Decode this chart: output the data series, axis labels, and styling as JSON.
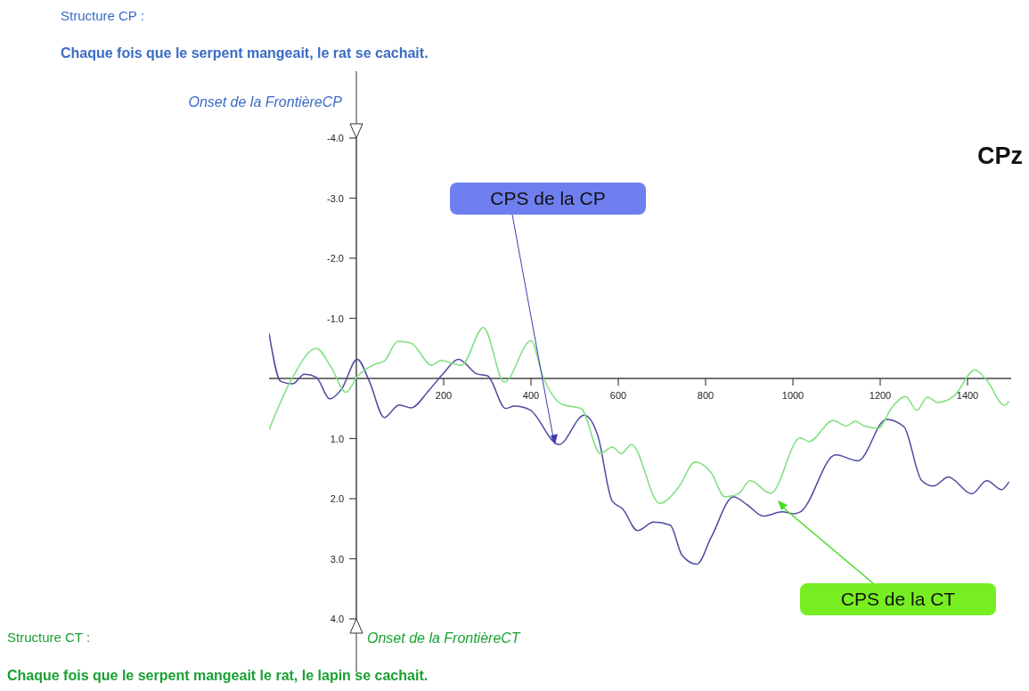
{
  "chart_data": {
    "type": "line",
    "title": "CPz",
    "xlim": [
      -200,
      1500
    ],
    "xticks": [
      200,
      400,
      600,
      800,
      1000,
      1200,
      1400
    ],
    "ylim": [
      4,
      -4
    ],
    "yticks": [
      {
        "value": -4,
        "label": "-4.0"
      },
      {
        "value": -3,
        "label": "-3.0"
      },
      {
        "value": -2,
        "label": "-2.0"
      },
      {
        "value": -1,
        "label": "-1.0"
      },
      {
        "value": 1,
        "label": "1.0"
      },
      {
        "value": 2,
        "label": "2.0"
      },
      {
        "value": 3,
        "label": "3.0"
      },
      {
        "value": 4,
        "label": "4.0"
      }
    ],
    "marker": "none",
    "series": [
      {
        "color": "#4a4aa0",
        "x": [
          -200,
          -173,
          -146,
          -119,
          -92,
          -61,
          -34,
          2,
          30,
          64,
          98,
          125,
          166,
          200,
          234,
          275,
          301,
          342,
          362,
          397,
          464,
          522,
          553,
          586,
          610,
          644,
          681,
          719,
          746,
          780,
          813,
          864,
          895,
          932,
          976,
          1003,
          1017,
          1098,
          1149,
          1214,
          1254,
          1295,
          1322,
          1356,
          1410,
          1444,
          1478,
          1495
        ],
        "values": [
          -0.75,
          0.05,
          0.09,
          -0.07,
          -0.02,
          0.34,
          0.18,
          -0.32,
          0.05,
          0.65,
          0.44,
          0.49,
          0.2,
          -0.09,
          -0.32,
          -0.08,
          -0.04,
          0.5,
          0.46,
          0.52,
          1.1,
          0.61,
          0.95,
          2.04,
          2.17,
          2.53,
          2.39,
          2.44,
          2.94,
          3.09,
          2.64,
          1.97,
          2.1,
          2.29,
          2.22,
          2.25,
          2.22,
          1.27,
          1.37,
          0.68,
          0.8,
          1.7,
          1.79,
          1.64,
          1.92,
          1.7,
          1.85,
          1.72
        ]
      },
      {
        "color": "#7ee07e",
        "x": [
          -200,
          -146,
          -92,
          -58,
          -24,
          3,
          44,
          64,
          95,
          125,
          173,
          193,
          241,
          291,
          339,
          400,
          427,
          471,
          515,
          559,
          586,
          607,
          630,
          695,
          739,
          776,
          813,
          844,
          875,
          902,
          949,
          1017,
          1037,
          1092,
          1123,
          1143,
          1163,
          1195,
          1227,
          1258,
          1284,
          1308,
          1332,
          1369,
          1417,
          1444,
          1485,
          1495
        ],
        "values": [
          0.85,
          -0.02,
          -0.5,
          -0.19,
          0.23,
          -0.04,
          -0.24,
          -0.29,
          -0.62,
          -0.59,
          -0.22,
          -0.3,
          -0.22,
          -0.85,
          0.06,
          -0.63,
          -0.04,
          0.43,
          0.5,
          1.25,
          1.14,
          1.25,
          1.1,
          2.08,
          1.8,
          1.39,
          1.57,
          1.97,
          1.92,
          1.7,
          1.91,
          0.99,
          1.05,
          0.7,
          0.79,
          0.71,
          0.79,
          0.83,
          0.48,
          0.3,
          0.53,
          0.31,
          0.4,
          0.29,
          -0.14,
          0.03,
          0.45,
          0.38
        ]
      }
    ],
    "annotations": [
      "Structure CP :",
      "Chaque fois que le serpent mangeait, le rat se cachait.",
      "Onset de la FrontièreCP",
      {
        "text": "CPS de la CP",
        "x": 455,
        "y": 1.1
      },
      "CPS de la CT",
      "Structure CT :",
      "Onset de la FrontièreCT",
      "Chaque fois que le serpent mangeait le rat, le lapin se cachait."
    ]
  }
}
